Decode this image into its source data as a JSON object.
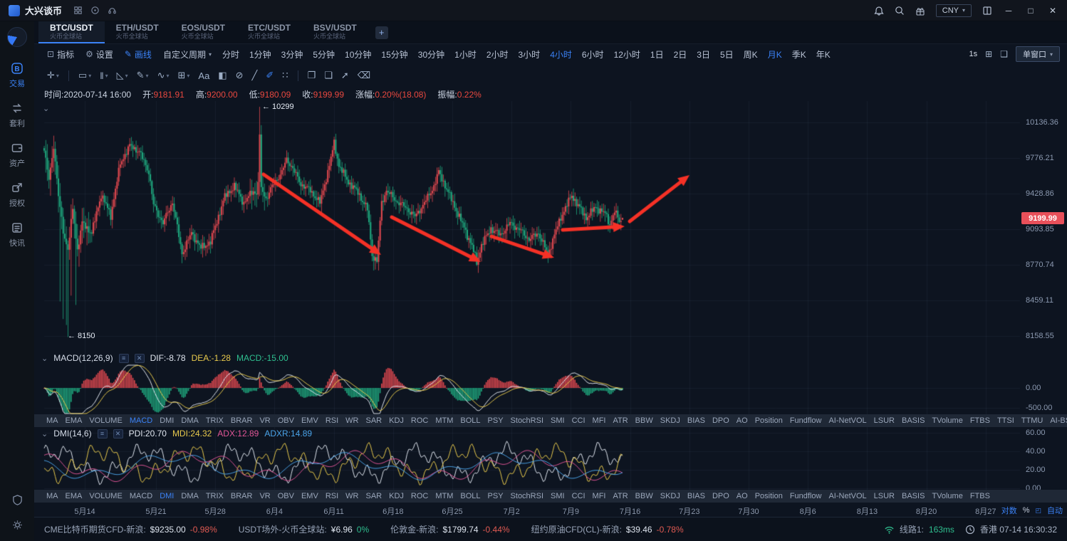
{
  "topbar": {
    "app_name": "大兴谈币",
    "currency": "CNY",
    "mini_icons": [
      "scan-icon",
      "about-icon",
      "service-icon"
    ]
  },
  "icons": {
    "caret_down": "▾",
    "collapse_arrow": "⌄",
    "minimize": "─",
    "maximize": "□",
    "close": "✕",
    "settings_mini": "≡",
    "close_mini": "✕",
    "layout_grid": "⊞",
    "save_layout": "❑",
    "auto_scale": "◰",
    "plus": "+"
  },
  "sidebar": {
    "items": [
      {
        "key": "trade",
        "icon": "trade-icon",
        "label": "交易",
        "active": true
      },
      {
        "key": "arbitrage",
        "icon": "arbitrage-icon",
        "label": "套利",
        "active": false
      },
      {
        "key": "assets",
        "icon": "assets-icon",
        "label": "资产",
        "active": false
      },
      {
        "key": "auth",
        "icon": "auth-icon",
        "label": "授权",
        "active": false
      },
      {
        "key": "news",
        "icon": "news-icon",
        "label": "快讯",
        "active": false
      }
    ],
    "bottom": [
      {
        "key": "badge",
        "icon": "shield-icon"
      },
      {
        "key": "settings",
        "icon": "gear-icon"
      }
    ]
  },
  "tabs": {
    "items": [
      {
        "title": "BTC/USDT",
        "subtitle": "火币全球站",
        "active": true
      },
      {
        "title": "ETH/USDT",
        "subtitle": "火币全球站",
        "active": false
      },
      {
        "title": "EOS/USDT",
        "subtitle": "火币全球站",
        "active": false
      },
      {
        "title": "ETC/USDT",
        "subtitle": "火币全球站",
        "active": false
      },
      {
        "title": "BSV/USDT",
        "subtitle": "火币全球站",
        "active": false
      }
    ]
  },
  "toolbar": {
    "indicators_label": "指标",
    "settings_label": "设置",
    "draw_label": "画线",
    "custom_period_label": "自定义周期",
    "timeframes": [
      "分时",
      "1分钟",
      "3分钟",
      "5分钟",
      "10分钟",
      "15分钟",
      "30分钟",
      "1小时",
      "2小时",
      "3小时",
      "4小时",
      "6小时",
      "12小时",
      "1日",
      "2日",
      "3日",
      "5日",
      "周K",
      "月K",
      "季K",
      "年K"
    ],
    "highlighted_timeframes": [
      "4小时",
      "月K"
    ],
    "refresh_interval": "1s",
    "window_mode_label": "单窗口"
  },
  "drawbar": {
    "tools": [
      {
        "name": "crosshair-tool",
        "glyph": "✛",
        "caret": true
      },
      {
        "name": "separator"
      },
      {
        "name": "ruler-tool",
        "glyph": "▭",
        "caret": true
      },
      {
        "name": "bars-tool",
        "glyph": "‖",
        "caret": true
      },
      {
        "name": "angle-tool",
        "glyph": "◺",
        "caret": true
      },
      {
        "name": "pencil-tool",
        "glyph": "✎",
        "caret": true
      },
      {
        "name": "wave-tool",
        "glyph": "∿",
        "caret": true
      },
      {
        "name": "fib-grid-tool",
        "glyph": "⊞",
        "caret": true
      },
      {
        "name": "text-tool",
        "glyph": "Aa"
      },
      {
        "name": "pattern-tool",
        "glyph": "◧"
      },
      {
        "name": "ellipse-tool",
        "glyph": "⊘"
      },
      {
        "name": "ray-tool",
        "glyph": "╱"
      },
      {
        "name": "brush-tool",
        "glyph": "✐",
        "active": true
      },
      {
        "name": "dots-tool",
        "glyph": "∷"
      },
      {
        "name": "separator"
      },
      {
        "name": "copy-tool",
        "glyph": "❐"
      },
      {
        "name": "save-tool",
        "glyph": "❏"
      },
      {
        "name": "export-tool",
        "glyph": "➚"
      },
      {
        "name": "delete-tool",
        "glyph": "⌫"
      }
    ]
  },
  "info_row": {
    "fields": [
      {
        "label": "时间:",
        "value": "2020-07-14 16:00",
        "color": "text"
      },
      {
        "label": "开:",
        "value": "9181.91",
        "color": "up"
      },
      {
        "label": "高:",
        "value": "9200.00",
        "color": "up"
      },
      {
        "label": "低:",
        "value": "9180.09",
        "color": "up"
      },
      {
        "label": "收:",
        "value": "9199.99",
        "color": "up"
      },
      {
        "label": "涨幅:",
        "value": "0.20%(18.08)",
        "color": "up"
      },
      {
        "label": "振幅:",
        "value": "0.22%",
        "color": "up"
      }
    ]
  },
  "chart_data": {
    "type": "candlestick",
    "symbol": "BTC/USDT",
    "exchange": "火币全球站",
    "period": "4小时",
    "scale": "log",
    "y_axis_ticks": [
      "10136.36",
      "9776.21",
      "9428.86",
      "9093.85",
      "8770.74",
      "8459.11",
      "8158.55"
    ],
    "last_price": "9199.99",
    "high_annotation": "← 10299",
    "low_annotation": "← 8150",
    "marked_high": 10299,
    "marked_low": 8150,
    "n_candles": 366,
    "last_candle": {
      "open": 9181.91,
      "high": 9200.0,
      "low": 9180.09,
      "close": 9199.99
    },
    "close_anchors": [
      [
        0,
        9850
      ],
      [
        3,
        9560
      ],
      [
        6,
        9900
      ],
      [
        9,
        9400
      ],
      [
        12,
        9080
      ],
      [
        15,
        8900
      ],
      [
        18,
        9280
      ],
      [
        21,
        8900
      ],
      [
        24,
        9150
      ],
      [
        30,
        9060
      ],
      [
        36,
        9420
      ],
      [
        42,
        9220
      ],
      [
        48,
        9720
      ],
      [
        54,
        9900
      ],
      [
        60,
        9840
      ],
      [
        66,
        9640
      ],
      [
        69,
        9320
      ],
      [
        75,
        9150
      ],
      [
        81,
        9350
      ],
      [
        87,
        8870
      ],
      [
        93,
        9060
      ],
      [
        99,
        8920
      ],
      [
        105,
        8980
      ],
      [
        108,
        9120
      ],
      [
        114,
        9400
      ],
      [
        120,
        9500
      ],
      [
        126,
        9340
      ],
      [
        132,
        9460
      ],
      [
        134,
        9420
      ],
      [
        135,
        9560
      ],
      [
        136,
        9980
      ],
      [
        137,
        9480
      ],
      [
        140,
        9380
      ],
      [
        144,
        9500
      ],
      [
        150,
        9640
      ],
      [
        153,
        9760
      ],
      [
        156,
        9700
      ],
      [
        162,
        9520
      ],
      [
        168,
        9460
      ],
      [
        174,
        9340
      ],
      [
        180,
        9700
      ],
      [
        183,
        9930
      ],
      [
        186,
        9700
      ],
      [
        192,
        9540
      ],
      [
        198,
        9440
      ],
      [
        204,
        9280
      ],
      [
        207,
        8860
      ],
      [
        210,
        8800
      ],
      [
        213,
        9340
      ],
      [
        216,
        9460
      ],
      [
        222,
        9360
      ],
      [
        228,
        9300
      ],
      [
        234,
        9210
      ],
      [
        240,
        9340
      ],
      [
        246,
        9500
      ],
      [
        249,
        9640
      ],
      [
        252,
        9540
      ],
      [
        258,
        9340
      ],
      [
        264,
        9140
      ],
      [
        270,
        8940
      ],
      [
        273,
        8790
      ],
      [
        276,
        8950
      ],
      [
        282,
        9100
      ],
      [
        288,
        9040
      ],
      [
        294,
        9150
      ],
      [
        300,
        9090
      ],
      [
        306,
        9000
      ],
      [
        312,
        9060
      ],
      [
        318,
        8860
      ],
      [
        321,
        9000
      ],
      [
        327,
        9240
      ],
      [
        333,
        9410
      ],
      [
        336,
        9340
      ],
      [
        342,
        9200
      ],
      [
        348,
        9300
      ],
      [
        354,
        9240
      ],
      [
        357,
        9140
      ],
      [
        360,
        9260
      ],
      [
        363,
        9170
      ],
      [
        365,
        9200
      ]
    ],
    "wick_highs": [
      [
        136,
        10299
      ],
      [
        183,
        9990
      ]
    ],
    "wick_lows": [
      [
        10,
        8450
      ],
      [
        12,
        8300
      ],
      [
        14,
        8250
      ],
      [
        15,
        8150
      ],
      [
        17,
        8500
      ],
      [
        20,
        8420
      ],
      [
        208,
        8720
      ],
      [
        273,
        8760
      ]
    ],
    "arrows": [
      [
        322,
        103,
        487,
        216
      ],
      [
        502,
        163,
        627,
        226
      ],
      [
        642,
        190,
        730,
        220
      ],
      [
        742,
        181,
        829,
        176
      ],
      [
        836,
        169,
        920,
        104
      ]
    ],
    "dates": [
      "5月14",
      "5月21",
      "5月28",
      "6月4",
      "6月11",
      "6月18",
      "6月25",
      "7月2",
      "7月9",
      "7月16",
      "7月23",
      "7月30",
      "8月6",
      "8月13",
      "8月20",
      "8月27"
    ]
  },
  "macd": {
    "title": "MACD(12,26,9)",
    "dif": "DIF:-8.78",
    "dea": "DEA:-1.28",
    "macd": "MACD:-15.00",
    "axis": [
      "0.00",
      "-500.00"
    ]
  },
  "dmi": {
    "title": "DMI(14,6)",
    "pdi": "PDI:20.70",
    "mdi": "MDI:24.32",
    "adx": "ADX:12.89",
    "adxr": "ADXR:14.89",
    "axis": [
      "60.00",
      "40.00",
      "20.00",
      "0.00"
    ]
  },
  "indicator_strips": {
    "row1": {
      "active": "MACD",
      "items": [
        "MA",
        "EMA",
        "VOLUME",
        "MACD",
        "DMI",
        "DMA",
        "TRIX",
        "BRAR",
        "VR",
        "OBV",
        "EMV",
        "RSI",
        "WR",
        "SAR",
        "KDJ",
        "ROC",
        "MTM",
        "BOLL",
        "PSY",
        "StochRSI",
        "SMI",
        "CCI",
        "MFI",
        "ATR",
        "BBW",
        "SKDJ",
        "BIAS",
        "DPO",
        "AO",
        "Position",
        "Fundflow",
        "AI-NetVOL",
        "LSUR",
        "BASIS",
        "TVolume",
        "FTBS",
        "TTSI",
        "TTMU",
        "AI-BSI"
      ]
    },
    "row2": {
      "active": "DMI",
      "items": [
        "MA",
        "EMA",
        "VOLUME",
        "MACD",
        "DMI",
        "DMA",
        "TRIX",
        "BRAR",
        "VR",
        "OBV",
        "EMV",
        "RSI",
        "WR",
        "SAR",
        "KDJ",
        "ROC",
        "MTM",
        "BOLL",
        "PSY",
        "StochRSI",
        "SMI",
        "CCI",
        "MFI",
        "ATR",
        "BBW",
        "SKDJ",
        "BIAS",
        "DPO",
        "AO",
        "Position",
        "Fundflow",
        "AI-NetVOL",
        "LSUR",
        "BASIS",
        "TVolume",
        "FTBS"
      ]
    }
  },
  "dates_row": {
    "log_label": "对数",
    "percent_label": "%",
    "auto_label": "自动"
  },
  "statusbar": {
    "items": [
      {
        "label": "CME比特币期货CFD-新浪:",
        "value": "$9235.00",
        "pct": "-0.98%",
        "dir": "neg"
      },
      {
        "label": "USDT场外-火币全球站:",
        "value": "¥6.96",
        "pct": "0%",
        "dir": "pos"
      },
      {
        "label": "伦敦金-新浪:",
        "value": "$1799.74",
        "pct": "-0.44%",
        "dir": "neg"
      },
      {
        "label": "纽约原油CFD(CL)-新浪:",
        "value": "$39.46",
        "pct": "-0.78%",
        "dir": "neg"
      }
    ],
    "line_label": "线路1:",
    "latency": "163ms",
    "clock": "香港 07-14 16:30:32"
  },
  "colors": {
    "accent": "#3b82f6",
    "up": "#e0484f",
    "down": "#1fa87e",
    "arrow": "#f53126",
    "tag_bg": "#e8505a",
    "dif_line": "#dfe5ee",
    "dea_line": "#e7c94c",
    "adx_line": "#e05596",
    "adxr_line": "#4aa3e8",
    "grid": "rgba(130,150,185,0.08)"
  }
}
